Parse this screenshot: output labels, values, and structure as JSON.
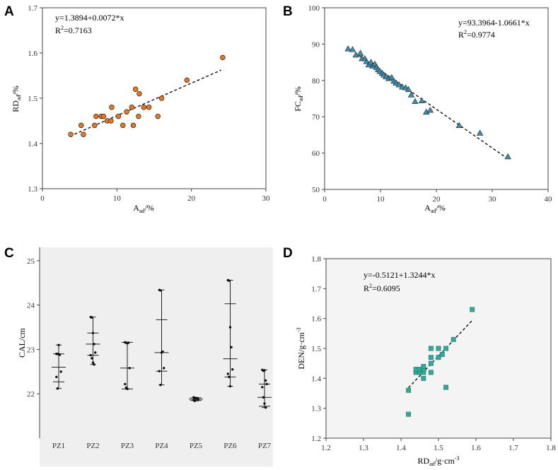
{
  "figure_colors": {
    "scatter_a": "#e87722",
    "scatter_b": "#3f8fb3",
    "scatter_d": "#34a89a",
    "panel_c_bg": "#efefef",
    "panel_d_bg": "#f4f4f4"
  },
  "chart_data": [
    {
      "panel": "A",
      "type": "scatter",
      "xlabel_main": "A",
      "xlabel_sub": "ad",
      "xlabel_unit": "/%",
      "ylabel_main": "RD",
      "ylabel_sub": "ad",
      "ylabel_unit": "/%",
      "xlim": [
        0,
        30
      ],
      "ylim": [
        1.3,
        1.7
      ],
      "xticks": [
        0,
        10,
        20,
        30
      ],
      "yticks": [
        1.3,
        1.4,
        1.5,
        1.6,
        1.7
      ],
      "ytick_labels": [
        "1.3",
        "1.4",
        "1.5",
        "1.6",
        "1.7"
      ],
      "equation": "y=1.3894+0.0072*x",
      "r2_label": "R",
      "r2_sup": "2",
      "r2_value": "=0.7163",
      "fit": {
        "intercept": 1.3894,
        "slope": 0.0072,
        "x_range": [
          3.7,
          24.0
        ]
      },
      "points": [
        [
          3.8,
          1.42
        ],
        [
          5.2,
          1.44
        ],
        [
          5.5,
          1.42
        ],
        [
          7.0,
          1.44
        ],
        [
          7.2,
          1.46
        ],
        [
          7.9,
          1.46
        ],
        [
          8.2,
          1.46
        ],
        [
          8.7,
          1.45
        ],
        [
          9.2,
          1.45
        ],
        [
          9.3,
          1.48
        ],
        [
          10.2,
          1.46
        ],
        [
          10.8,
          1.44
        ],
        [
          11.3,
          1.47
        ],
        [
          12.0,
          1.48
        ],
        [
          12.2,
          1.44
        ],
        [
          12.5,
          1.52
        ],
        [
          12.9,
          1.46
        ],
        [
          13.0,
          1.51
        ],
        [
          13.6,
          1.48
        ],
        [
          14.3,
          1.48
        ],
        [
          15.5,
          1.46
        ],
        [
          16.0,
          1.5
        ],
        [
          19.4,
          1.54
        ],
        [
          24.2,
          1.59
        ]
      ]
    },
    {
      "panel": "B",
      "type": "scatter",
      "xlabel_main": "A",
      "xlabel_sub": "ad",
      "xlabel_unit": "/%",
      "ylabel_main": "FC",
      "ylabel_sub": "ad",
      "ylabel_unit": "/%",
      "xlim": [
        0,
        40
      ],
      "ylim": [
        50,
        100
      ],
      "xticks": [
        0,
        10,
        20,
        30,
        40
      ],
      "yticks": [
        50,
        60,
        70,
        80,
        90,
        100
      ],
      "ytick_labels": [
        "50",
        "60",
        "70",
        "80",
        "90",
        "100"
      ],
      "equation": "y=93.3964-1.0661*x",
      "r2_label": "R",
      "r2_sup": "2",
      "r2_value": "=0.9774",
      "fit": {
        "intercept": 93.3964,
        "slope": -1.0661,
        "x_range": [
          4.0,
          32.5
        ]
      },
      "points": [
        [
          4.2,
          88.7
        ],
        [
          5.0,
          88.5
        ],
        [
          5.6,
          87.0
        ],
        [
          6.4,
          87.5
        ],
        [
          6.7,
          86.0
        ],
        [
          7.2,
          86.0
        ],
        [
          7.5,
          85.2
        ],
        [
          7.9,
          84.3
        ],
        [
          8.3,
          85.0
        ],
        [
          8.6,
          84.0
        ],
        [
          9.0,
          84.5
        ],
        [
          9.3,
          83.6
        ],
        [
          9.6,
          83.0
        ],
        [
          9.9,
          82.5
        ],
        [
          10.3,
          82.0
        ],
        [
          10.6,
          81.5
        ],
        [
          11.0,
          81.0
        ],
        [
          11.5,
          80.5
        ],
        [
          12.0,
          80.8
        ],
        [
          12.4,
          79.8
        ],
        [
          12.8,
          79.3
        ],
        [
          13.3,
          78.8
        ],
        [
          13.9,
          78.2
        ],
        [
          14.5,
          78.0
        ],
        [
          15.0,
          77.5
        ],
        [
          15.5,
          76.0
        ],
        [
          16.2,
          74.2
        ],
        [
          17.4,
          74.4
        ],
        [
          18.2,
          71.3
        ],
        [
          18.9,
          71.8
        ],
        [
          24.1,
          67.6
        ],
        [
          27.8,
          65.5
        ],
        [
          32.8,
          59.0
        ]
      ]
    },
    {
      "panel": "C",
      "type": "scatter",
      "ylabel": "CAL/cm",
      "categories": [
        "PZ1",
        "PZ2",
        "PZ3",
        "PZ4",
        "PZ5",
        "PZ6",
        "PZ7"
      ],
      "ylim": [
        21,
        25.3
      ],
      "yticks": [
        22,
        23,
        24,
        25
      ],
      "ytick_labels": [
        "22",
        "23",
        "24",
        "25"
      ],
      "summary": [
        {
          "mean": 22.6,
          "sd_low": 22.27,
          "sd_high": 22.9,
          "min": 22.12,
          "max": 23.1
        },
        {
          "mean": 23.12,
          "sd_low": 22.87,
          "sd_high": 23.37,
          "min": 22.66,
          "max": 23.73
        },
        {
          "mean": 22.58,
          "sd_low": 22.11,
          "sd_high": 23.16,
          "min": 22.11,
          "max": 23.16
        },
        {
          "mean": 22.93,
          "sd_low": 22.51,
          "sd_high": 23.67,
          "min": 22.2,
          "max": 24.34
        },
        {
          "mean": 21.88,
          "sd_low": 21.85,
          "sd_high": 21.91,
          "min": 21.84,
          "max": 21.92
        },
        {
          "mean": 22.79,
          "sd_low": 22.38,
          "sd_high": 24.03,
          "min": 22.17,
          "max": 24.56
        },
        {
          "mean": 21.92,
          "sd_low": 21.72,
          "sd_high": 22.22,
          "min": 21.69,
          "max": 22.54
        }
      ],
      "points": [
        [
          22.9,
          22.9,
          22.89,
          22.88,
          22.5,
          22.38,
          22.12,
          23.1
        ],
        [
          23.73,
          23.72,
          23.37,
          23.12,
          22.93,
          22.87,
          22.8,
          22.7,
          22.66
        ],
        [
          23.16,
          23.15,
          23.14,
          23.15,
          22.58,
          22.22,
          22.14,
          22.11
        ],
        [
          24.34,
          24.33,
          22.93,
          22.95,
          22.58,
          22.51,
          22.2
        ],
        [
          21.92,
          21.91,
          21.9,
          21.89,
          21.88,
          21.86,
          21.84
        ],
        [
          24.56,
          24.55,
          23.5,
          23.05,
          22.55,
          22.45,
          22.38,
          22.17
        ],
        [
          22.54,
          22.52,
          22.53,
          22.3,
          22.22,
          22.15,
          21.92,
          21.78,
          21.69
        ]
      ]
    },
    {
      "panel": "D",
      "type": "scatter",
      "xlabel_main": "RD",
      "xlabel_sub": "ad",
      "xlabel_unit": "/g·cm",
      "xlabel_sup": "-3",
      "ylabel_main": "DEN/g·cm",
      "ylabel_sup": "-3",
      "xlim": [
        1.2,
        1.8
      ],
      "ylim": [
        1.2,
        1.8
      ],
      "xticks": [
        1.2,
        1.3,
        1.4,
        1.5,
        1.6,
        1.7,
        1.8
      ],
      "xtick_labels": [
        "1.2",
        "1.3",
        "1.4",
        "1.5",
        "1.6",
        "1.7",
        "1.8"
      ],
      "yticks": [
        1.2,
        1.3,
        1.4,
        1.5,
        1.6,
        1.7,
        1.8
      ],
      "ytick_labels": [
        "1.2",
        "1.3",
        "1.4",
        "1.5",
        "1.6",
        "1.7",
        "1.8"
      ],
      "equation": "y=-0.5121+1.3244*x",
      "r2_label": "R",
      "r2_sup": "2",
      "r2_value": "=0.6095",
      "fit": {
        "intercept": -0.5121,
        "slope": 1.3244,
        "x_range": [
          1.42,
          1.59
        ]
      },
      "points": [
        [
          1.42,
          1.28
        ],
        [
          1.42,
          1.36
        ],
        [
          1.44,
          1.42
        ],
        [
          1.44,
          1.43
        ],
        [
          1.45,
          1.42
        ],
        [
          1.45,
          1.43
        ],
        [
          1.46,
          1.42
        ],
        [
          1.46,
          1.43
        ],
        [
          1.46,
          1.44
        ],
        [
          1.46,
          1.4
        ],
        [
          1.48,
          1.42
        ],
        [
          1.48,
          1.45
        ],
        [
          1.48,
          1.47
        ],
        [
          1.48,
          1.5
        ],
        [
          1.5,
          1.47
        ],
        [
          1.5,
          1.5
        ],
        [
          1.51,
          1.48
        ],
        [
          1.52,
          1.37
        ],
        [
          1.52,
          1.5
        ],
        [
          1.54,
          1.53
        ],
        [
          1.59,
          1.63
        ]
      ]
    }
  ]
}
